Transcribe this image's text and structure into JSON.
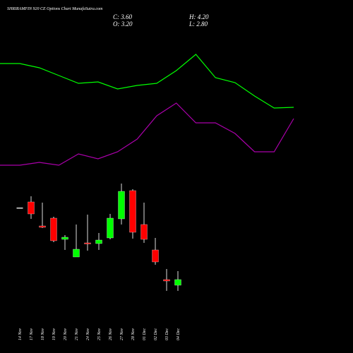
{
  "chart_data": {
    "type": "candlestick",
    "title": "SHRIRAMFIN 920 CE Options Chart MunafaSutra.com",
    "info": [
      "C: 3.60",
      "H: 4.20",
      "O: 3.20",
      "L: 2.80"
    ],
    "categories": [
      "14 Nov",
      "17 Nov",
      "18 Nov",
      "19 Nov",
      "20 Nov",
      "21 Nov",
      "24 Nov",
      "25 Nov",
      "26 Nov",
      "27 Nov",
      "28 Nov",
      "01 Dec",
      "02 Dec",
      "03 Dec",
      "04 Dec"
    ],
    "open": [
      8.7,
      9.1,
      7.4,
      7.95,
      6.45,
      5.2,
      6.2,
      6.15,
      6.55,
      7.9,
      9.9,
      7.5,
      5.7,
      3.6,
      3.2
    ],
    "high": [
      8.7,
      9.5,
      9.05,
      8.05,
      6.75,
      7.5,
      8.2,
      6.9,
      8.25,
      10.4,
      10.0,
      9.05,
      6.55,
      4.35,
      4.2
    ],
    "low": [
      8.7,
      7.9,
      7.25,
      6.25,
      5.7,
      5.2,
      5.65,
      5.7,
      6.45,
      7.5,
      6.5,
      6.2,
      4.65,
      2.8,
      2.8
    ],
    "close": [
      8.7,
      8.25,
      7.3,
      6.35,
      6.6,
      5.75,
      6.15,
      6.4,
      7.95,
      9.85,
      6.95,
      6.45,
      4.85,
      3.5,
      3.6
    ],
    "up_color": "#00ff00",
    "down_color": "#ff0000",
    "flat_color": "#dddddd",
    "series": [
      {
        "color": "#00ff00",
        "values": [
          18.9,
          18.6,
          18.05,
          17.5,
          17.6,
          17.1,
          17.35,
          17.5,
          18.4,
          19.55,
          17.9,
          17.55,
          16.6,
          15.75,
          15.8
        ]
      },
      {
        "color": "#aa00aa",
        "values": [
          11.7,
          11.9,
          11.7,
          12.5,
          12.15,
          12.65,
          13.55,
          15.2,
          16.1,
          14.7,
          14.7,
          13.95,
          12.65,
          12.65,
          15.0
        ]
      }
    ]
  }
}
